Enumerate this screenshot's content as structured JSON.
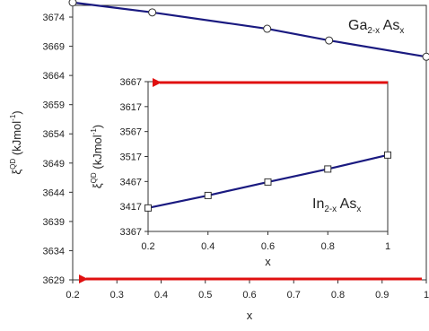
{
  "chart_data": [
    {
      "type": "line",
      "role": "main",
      "label": {
        "base": "Ga",
        "sub1": "2-x",
        "mid": " As",
        "sub2": "x"
      },
      "xlabel": "x",
      "ylabel": {
        "base": "ξ",
        "sup": "QD",
        "rest": " (kJmol",
        "rest_sup": "-1",
        "end": ")"
      },
      "xlim": [
        0.2,
        1.0
      ],
      "ylim": [
        3629,
        3676
      ],
      "x_ticks": [
        "0.2",
        "0.3",
        "0.4",
        "0.5",
        "0.6",
        "0.7",
        "0.8",
        "0.9",
        "1"
      ],
      "y_ticks": [
        "3629",
        "3634",
        "3639",
        "3644",
        "3649",
        "3654",
        "3659",
        "3664",
        "3669",
        "3674"
      ],
      "series": [
        {
          "marker": "circle",
          "color": "#1a1a80",
          "x": [
            0.2,
            0.38,
            0.64,
            0.78,
            1.0
          ],
          "y": [
            3676.5,
            3674.8,
            3672.0,
            3670.0,
            3667.2
          ]
        }
      ]
    },
    {
      "type": "line",
      "role": "inset",
      "label": {
        "base": "In",
        "sub1": "2-x",
        "mid": " As",
        "sub2": "x"
      },
      "xlabel": "x",
      "ylabel": {
        "base": "ξ",
        "sup": "QD",
        "rest": " (kJmol",
        "rest_sup": "-1",
        "end": ")"
      },
      "xlim": [
        0.2,
        1.0
      ],
      "ylim": [
        3367,
        3667
      ],
      "x_ticks": [
        "0.2",
        "0.4",
        "0.6",
        "0.8",
        "1"
      ],
      "y_ticks": [
        "3367",
        "3417",
        "3467",
        "3517",
        "3567",
        "3617",
        "3667"
      ],
      "series": [
        {
          "marker": "square",
          "color": "#1a1a80",
          "x": [
            0.2,
            0.4,
            0.6,
            0.8,
            1.0
          ],
          "y": [
            3414,
            3439,
            3466,
            3492,
            3520
          ]
        }
      ]
    }
  ],
  "colors": {
    "arrow": "#e01010",
    "line": "#1a1a80"
  }
}
